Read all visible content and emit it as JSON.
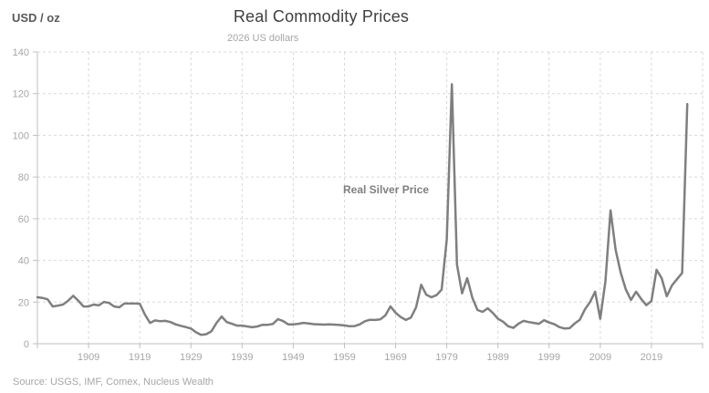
{
  "chart": {
    "title": "Real Commodity Prices",
    "subtitle": "2026 US dollars",
    "y_axis_title": "USD / oz",
    "series_label": "Real Silver Price",
    "source": "Source: USGS, IMF, Comex, Nucleus Wealth"
  },
  "colors": {
    "line": "#7f7f7f",
    "gridline": "#d9d9d9",
    "axis": "#bfbfbf",
    "tick_label": "#a6a6a6",
    "title": "#404040",
    "subtitle": "#a6a6a6",
    "background": "#ffffff"
  },
  "chart_data": {
    "type": "line",
    "title": "Real Commodity Prices",
    "subtitle": "2026 US dollars",
    "xlabel": "",
    "ylabel": "USD / oz",
    "xlim": [
      1899,
      2029
    ],
    "ylim": [
      0,
      140
    ],
    "x_ticks": [
      1909,
      1919,
      1929,
      1939,
      1949,
      1959,
      1969,
      1979,
      1989,
      1999,
      2009,
      2019
    ],
    "x_minor_edge_ticks": [
      1899,
      2029
    ],
    "y_ticks": [
      0,
      20,
      40,
      60,
      80,
      100,
      120,
      140
    ],
    "grid": "dashed horizontal and vertical",
    "legend": "none, in-plot series annotation",
    "annotation": {
      "text": "Real Silver Price",
      "near_year": 1972,
      "near_value": 75
    },
    "source": "Source: USGS, IMF, Comex, Nucleus Wealth",
    "series": [
      {
        "name": "Real Silver Price",
        "x_start": 1899,
        "x_end": 2026,
        "values": [
          22.3,
          22.0,
          21.3,
          17.9,
          18.3,
          18.8,
          20.6,
          23.0,
          20.6,
          17.9,
          17.9,
          18.8,
          18.4,
          20.1,
          19.6,
          17.9,
          17.5,
          19.3,
          19.3,
          19.3,
          19.2,
          14.0,
          10.0,
          11.2,
          10.8,
          11.0,
          10.4,
          9.3,
          8.6,
          8.0,
          7.3,
          5.5,
          4.3,
          4.6,
          6.0,
          10.0,
          13.1,
          10.4,
          9.6,
          8.7,
          8.7,
          8.3,
          7.9,
          8.3,
          9.1,
          9.1,
          9.5,
          11.8,
          10.9,
          9.3,
          9.3,
          9.6,
          10.0,
          9.7,
          9.4,
          9.3,
          9.2,
          9.3,
          9.2,
          9.0,
          8.8,
          8.4,
          8.5,
          9.3,
          10.8,
          11.5,
          11.4,
          11.7,
          13.6,
          17.9,
          14.9,
          12.8,
          11.4,
          12.6,
          17.5,
          28.3,
          23.5,
          22.3,
          23.3,
          26.0,
          50.0,
          124.5,
          38.0,
          24.2,
          31.5,
          22.0,
          16.2,
          15.3,
          17.0,
          14.8,
          12.0,
          10.6,
          8.4,
          7.6,
          9.6,
          11.0,
          10.4,
          10.0,
          9.6,
          11.3,
          10.2,
          9.4,
          8.0,
          7.3,
          7.5,
          9.7,
          11.5,
          16.5,
          20.0,
          25.0,
          12.0,
          30.0,
          64.0,
          45.0,
          34.0,
          26.0,
          21.0,
          25.0,
          21.5,
          18.5,
          20.5,
          35.5,
          31.5,
          22.8,
          28.0,
          31.0,
          34.0,
          115.0
        ]
      }
    ]
  }
}
